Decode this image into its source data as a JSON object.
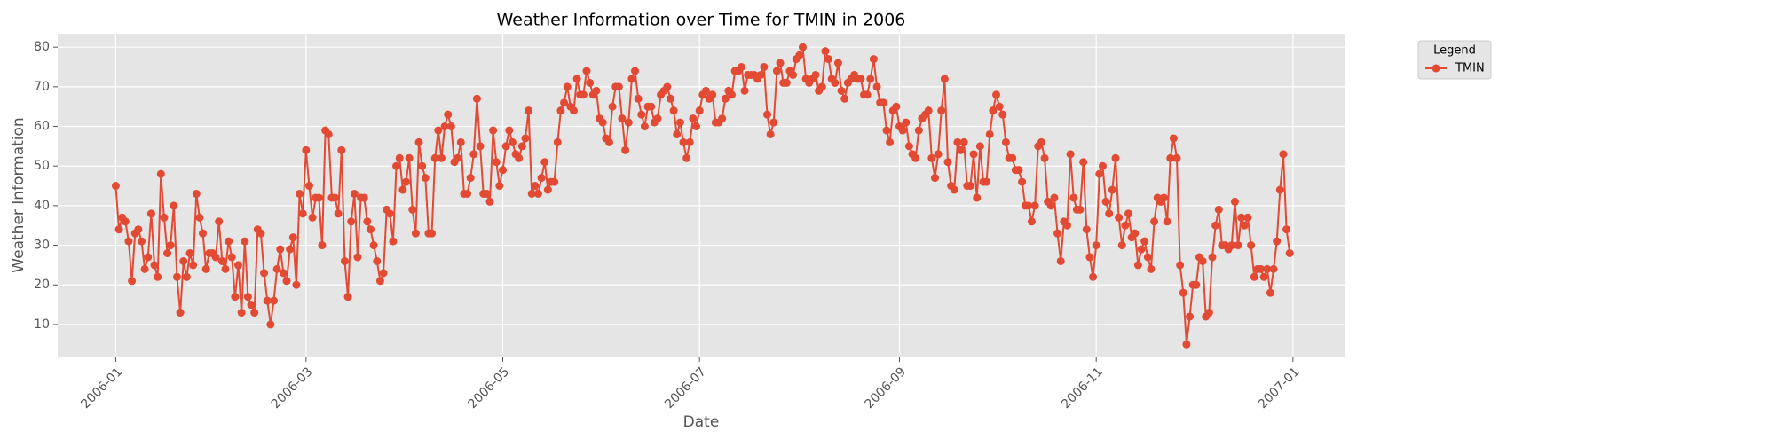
{
  "chart_data": {
    "type": "line",
    "title": "Weather Information over Time for TMIN in 2006",
    "xlabel": "Date",
    "ylabel": "Weather Information",
    "x": [
      "2006-01-01",
      "2006-01-02",
      "2006-01-03",
      "2006-01-04",
      "2006-01-05",
      "2006-01-06",
      "2006-01-07",
      "2006-01-08",
      "2006-01-09",
      "2006-01-10",
      "2006-01-11",
      "2006-01-12",
      "2006-01-13",
      "2006-01-14",
      "2006-01-15",
      "2006-01-16",
      "2006-01-17",
      "2006-01-18",
      "2006-01-19",
      "2006-01-20",
      "2006-01-21",
      "2006-01-22",
      "2006-01-23",
      "2006-01-24",
      "2006-01-25",
      "2006-01-26",
      "2006-01-27",
      "2006-01-28",
      "2006-01-29",
      "2006-01-30",
      "2006-01-31",
      "2006-02-01",
      "2006-02-02",
      "2006-02-03",
      "2006-02-04",
      "2006-02-05",
      "2006-02-06",
      "2006-02-07",
      "2006-02-08",
      "2006-02-09",
      "2006-02-10",
      "2006-02-11",
      "2006-02-12",
      "2006-02-13",
      "2006-02-14",
      "2006-02-15",
      "2006-02-16",
      "2006-02-17",
      "2006-02-18",
      "2006-02-19",
      "2006-02-20",
      "2006-02-21",
      "2006-02-22",
      "2006-02-23",
      "2006-02-24",
      "2006-02-25",
      "2006-02-26",
      "2006-02-27",
      "2006-02-28",
      "2006-03-01",
      "2006-03-02",
      "2006-03-03",
      "2006-03-04",
      "2006-03-05",
      "2006-03-06",
      "2006-03-07",
      "2006-03-08",
      "2006-03-09",
      "2006-03-10",
      "2006-03-11",
      "2006-03-12",
      "2006-03-13",
      "2006-03-14",
      "2006-03-15",
      "2006-03-16",
      "2006-03-17",
      "2006-03-18",
      "2006-03-19",
      "2006-03-20",
      "2006-03-21",
      "2006-03-22",
      "2006-03-23",
      "2006-03-24",
      "2006-03-25",
      "2006-03-26",
      "2006-03-27",
      "2006-03-28",
      "2006-03-29",
      "2006-03-30",
      "2006-03-31",
      "2006-04-01",
      "2006-04-02",
      "2006-04-03",
      "2006-04-04",
      "2006-04-05",
      "2006-04-06",
      "2006-04-07",
      "2006-04-08",
      "2006-04-09",
      "2006-04-10",
      "2006-04-11",
      "2006-04-12",
      "2006-04-13",
      "2006-04-14",
      "2006-04-15",
      "2006-04-16",
      "2006-04-17",
      "2006-04-18",
      "2006-04-19",
      "2006-04-20",
      "2006-04-21",
      "2006-04-22",
      "2006-04-23",
      "2006-04-24",
      "2006-04-25",
      "2006-04-26",
      "2006-04-27",
      "2006-04-28",
      "2006-04-29",
      "2006-04-30",
      "2006-05-01",
      "2006-05-02",
      "2006-05-03",
      "2006-05-04",
      "2006-05-05",
      "2006-05-06",
      "2006-05-07",
      "2006-05-08",
      "2006-05-09",
      "2006-05-10",
      "2006-05-11",
      "2006-05-12",
      "2006-05-13",
      "2006-05-14",
      "2006-05-15",
      "2006-05-16",
      "2006-05-17",
      "2006-05-18",
      "2006-05-19",
      "2006-05-20",
      "2006-05-21",
      "2006-05-22",
      "2006-05-23",
      "2006-05-24",
      "2006-05-25",
      "2006-05-26",
      "2006-05-27",
      "2006-05-28",
      "2006-05-29",
      "2006-05-30",
      "2006-05-31",
      "2006-06-01",
      "2006-06-02",
      "2006-06-03",
      "2006-06-04",
      "2006-06-05",
      "2006-06-06",
      "2006-06-07",
      "2006-06-08",
      "2006-06-09",
      "2006-06-10",
      "2006-06-11",
      "2006-06-12",
      "2006-06-13",
      "2006-06-14",
      "2006-06-15",
      "2006-06-16",
      "2006-06-17",
      "2006-06-18",
      "2006-06-19",
      "2006-06-20",
      "2006-06-21",
      "2006-06-22",
      "2006-06-23",
      "2006-06-24",
      "2006-06-25",
      "2006-06-26",
      "2006-06-27",
      "2006-06-28",
      "2006-06-29",
      "2006-06-30",
      "2006-07-01",
      "2006-07-02",
      "2006-07-03",
      "2006-07-04",
      "2006-07-05",
      "2006-07-06",
      "2006-07-07",
      "2006-07-08",
      "2006-07-09",
      "2006-07-10",
      "2006-07-11",
      "2006-07-12",
      "2006-07-13",
      "2006-07-14",
      "2006-07-15",
      "2006-07-16",
      "2006-07-17",
      "2006-07-18",
      "2006-07-19",
      "2006-07-20",
      "2006-07-21",
      "2006-07-22",
      "2006-07-23",
      "2006-07-24",
      "2006-07-25",
      "2006-07-26",
      "2006-07-27",
      "2006-07-28",
      "2006-07-29",
      "2006-07-30",
      "2006-07-31",
      "2006-08-01",
      "2006-08-02",
      "2006-08-03",
      "2006-08-04",
      "2006-08-05",
      "2006-08-06",
      "2006-08-07",
      "2006-08-08",
      "2006-08-09",
      "2006-08-10",
      "2006-08-11",
      "2006-08-12",
      "2006-08-13",
      "2006-08-14",
      "2006-08-15",
      "2006-08-16",
      "2006-08-17",
      "2006-08-18",
      "2006-08-19",
      "2006-08-20",
      "2006-08-21",
      "2006-08-22",
      "2006-08-23",
      "2006-08-24",
      "2006-08-25",
      "2006-08-26",
      "2006-08-27",
      "2006-08-28",
      "2006-08-29",
      "2006-08-30",
      "2006-08-31",
      "2006-09-01",
      "2006-09-02",
      "2006-09-03",
      "2006-09-04",
      "2006-09-05",
      "2006-09-06",
      "2006-09-07",
      "2006-09-08",
      "2006-09-09",
      "2006-09-10",
      "2006-09-11",
      "2006-09-12",
      "2006-09-13",
      "2006-09-14",
      "2006-09-15",
      "2006-09-16",
      "2006-09-17",
      "2006-09-18",
      "2006-09-19",
      "2006-09-20",
      "2006-09-21",
      "2006-09-22",
      "2006-09-23",
      "2006-09-24",
      "2006-09-25",
      "2006-09-26",
      "2006-09-27",
      "2006-09-28",
      "2006-09-29",
      "2006-09-30",
      "2006-10-01",
      "2006-10-02",
      "2006-10-03",
      "2006-10-04",
      "2006-10-05",
      "2006-10-06",
      "2006-10-07",
      "2006-10-08",
      "2006-10-09",
      "2006-10-10",
      "2006-10-11",
      "2006-10-12",
      "2006-10-13",
      "2006-10-14",
      "2006-10-15",
      "2006-10-16",
      "2006-10-17",
      "2006-10-18",
      "2006-10-19",
      "2006-10-20",
      "2006-10-21",
      "2006-10-22",
      "2006-10-23",
      "2006-10-24",
      "2006-10-25",
      "2006-10-26",
      "2006-10-27",
      "2006-10-28",
      "2006-10-29",
      "2006-10-30",
      "2006-10-31",
      "2006-11-01",
      "2006-11-02",
      "2006-11-03",
      "2006-11-04",
      "2006-11-05",
      "2006-11-06",
      "2006-11-07",
      "2006-11-08",
      "2006-11-09",
      "2006-11-10",
      "2006-11-11",
      "2006-11-12",
      "2006-11-13",
      "2006-11-14",
      "2006-11-15",
      "2006-11-16",
      "2006-11-17",
      "2006-11-18",
      "2006-11-19",
      "2006-11-20",
      "2006-11-21",
      "2006-11-22",
      "2006-11-23",
      "2006-11-24",
      "2006-11-25",
      "2006-11-26",
      "2006-11-27",
      "2006-11-28",
      "2006-11-29",
      "2006-11-30",
      "2006-12-01",
      "2006-12-02",
      "2006-12-03",
      "2006-12-04",
      "2006-12-05",
      "2006-12-06",
      "2006-12-07",
      "2006-12-08",
      "2006-12-09",
      "2006-12-10",
      "2006-12-11",
      "2006-12-12",
      "2006-12-13",
      "2006-12-14",
      "2006-12-15",
      "2006-12-16",
      "2006-12-17",
      "2006-12-18",
      "2006-12-19",
      "2006-12-20",
      "2006-12-21",
      "2006-12-22",
      "2006-12-23",
      "2006-12-24",
      "2006-12-25",
      "2006-12-26",
      "2006-12-27",
      "2006-12-28",
      "2006-12-29",
      "2006-12-30",
      "2006-12-31"
    ],
    "series": [
      {
        "name": "TMIN",
        "color": "#E24A33",
        "values": [
          45,
          34,
          37,
          36,
          31,
          21,
          33,
          34,
          31,
          24,
          27,
          38,
          25,
          22,
          48,
          37,
          28,
          30,
          40,
          22,
          13,
          26,
          22,
          28,
          25,
          43,
          37,
          33,
          24,
          28,
          28,
          27,
          36,
          26,
          24,
          31,
          27,
          17,
          25,
          13,
          31,
          17,
          15,
          13,
          34,
          33,
          23,
          16,
          10,
          16,
          24,
          29,
          23,
          21,
          29,
          32,
          20,
          43,
          38,
          54,
          45,
          37,
          42,
          42,
          30,
          59,
          58,
          42,
          42,
          38,
          54,
          26,
          17,
          36,
          43,
          27,
          42,
          42,
          36,
          34,
          30,
          26,
          21,
          23,
          39,
          38,
          31,
          50,
          52,
          44,
          46,
          52,
          39,
          33,
          56,
          50,
          47,
          33,
          33,
          52,
          59,
          52,
          60,
          63,
          60,
          51,
          52,
          56,
          43,
          43,
          47,
          53,
          67,
          55,
          43,
          43,
          41,
          59,
          51,
          45,
          49,
          55,
          59,
          56,
          53,
          52,
          55,
          57,
          64,
          43,
          45,
          43,
          47,
          51,
          44,
          46,
          46,
          56,
          64,
          66,
          70,
          65,
          64,
          72,
          68,
          68,
          74,
          71,
          68,
          69,
          62,
          61,
          57,
          56,
          65,
          70,
          70,
          62,
          54,
          61,
          72,
          74,
          67,
          63,
          60,
          65,
          65,
          61,
          62,
          68,
          69,
          70,
          67,
          64,
          58,
          61,
          56,
          52,
          56,
          62,
          60,
          64,
          68,
          69,
          67,
          68,
          61,
          61,
          62,
          67,
          69,
          68,
          74,
          74,
          75,
          69,
          73,
          73,
          73,
          72,
          73,
          75,
          63,
          58,
          61,
          74,
          76,
          71,
          71,
          74,
          73,
          77,
          78,
          80,
          72,
          71,
          72,
          73,
          69,
          70,
          79,
          77,
          72,
          71,
          76,
          69,
          67,
          71,
          72,
          73,
          72,
          72,
          68,
          68,
          72,
          77,
          70,
          66,
          66,
          59,
          56,
          64,
          65,
          60,
          59,
          61,
          55,
          53,
          52,
          59,
          62,
          63,
          64,
          52,
          47,
          53,
          64,
          72,
          51,
          45,
          44,
          56,
          54,
          56,
          45,
          45,
          53,
          42,
          55,
          46,
          46,
          58,
          64,
          68,
          65,
          63,
          56,
          52,
          52,
          49,
          49,
          46,
          40,
          40,
          36,
          40,
          55,
          56,
          52,
          41,
          40,
          42,
          33,
          26,
          36,
          35,
          53,
          42,
          39,
          39,
          51,
          34,
          27,
          22,
          30,
          48,
          50,
          41,
          38,
          44,
          52,
          37,
          30,
          35,
          38,
          32,
          33,
          25,
          29,
          31,
          27,
          24,
          36,
          42,
          41,
          42,
          36,
          52,
          57,
          52,
          25,
          18,
          5,
          12,
          20,
          20,
          27,
          26,
          12,
          13,
          27,
          35,
          39,
          30,
          30,
          29,
          30,
          41,
          30,
          37,
          35,
          37,
          30,
          22,
          24,
          24,
          22,
          24,
          18,
          24,
          31,
          44,
          53,
          34,
          28
        ]
      }
    ],
    "xlim": [
      "2005-12-14",
      "2007-01-17"
    ],
    "xticks": [
      {
        "value": "2006-01-01",
        "label": "2006-01"
      },
      {
        "value": "2006-03-01",
        "label": "2006-03"
      },
      {
        "value": "2006-05-01",
        "label": "2006-05"
      },
      {
        "value": "2006-07-01",
        "label": "2006-07"
      },
      {
        "value": "2006-09-01",
        "label": "2006-09"
      },
      {
        "value": "2006-11-01",
        "label": "2006-11"
      },
      {
        "value": "2007-01-01",
        "label": "2007-01"
      }
    ],
    "ylim": [
      1.7,
      83.4
    ],
    "yticks": [
      10,
      20,
      30,
      40,
      50,
      60,
      70,
      80
    ],
    "grid": true,
    "legend_title": "Legend",
    "legend": "outside-upper-right"
  }
}
